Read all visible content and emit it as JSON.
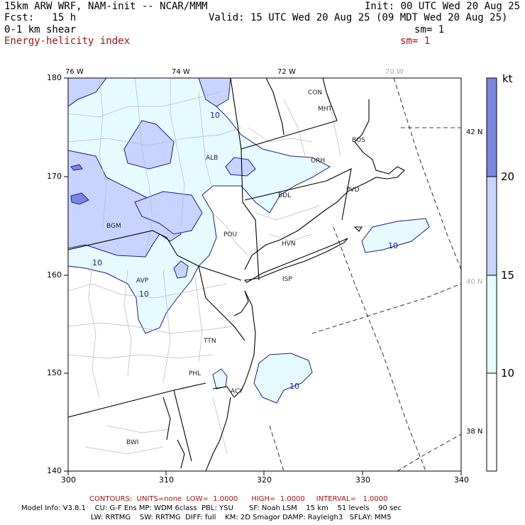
{
  "header": {
    "model_title": "15km ARW WRF, NAM-init -- NCAR/MMM",
    "init": "Init: 00 UTC Wed 20 Aug 25",
    "fcst": "Fcst:   15 h",
    "valid": "Valid: 15 UTC Wed 20 Aug 25 (09 MDT Wed 20 Aug 25)",
    "field1": "0-1 km shear",
    "sm1": "sm= 1",
    "field2": "Energy-helicity index",
    "sm2": "sm= 1"
  },
  "map": {
    "lon_labels": [
      "76 W",
      "74 W",
      "72 W",
      "70 W"
    ],
    "lat_labels": [
      "42 N",
      "40 N",
      "38 N"
    ],
    "x_ticks": [
      "300",
      "310",
      "320",
      "330",
      "340"
    ],
    "y_ticks": [
      "180",
      "170",
      "160",
      "150",
      "140"
    ],
    "stations": [
      "CON",
      "MHT",
      "BOS",
      "ALB",
      "ORH",
      "PVD",
      "BDL",
      "BGM",
      "POU",
      "HVN",
      "AVP",
      "ISP",
      "TTN",
      "PHL",
      "ACY",
      "BWI"
    ],
    "contour_labels": [
      "10",
      "10",
      "10",
      "10",
      "10"
    ]
  },
  "colorbar": {
    "unit": "kt",
    "levels": [
      "20",
      "15",
      "10"
    ],
    "colors": [
      "#7b86e0",
      "#c8d4ff",
      "#e6fbff",
      "#ffffff"
    ]
  },
  "footer": {
    "contours": "CONTOURS:  UNITS=none  LOW=  1.0000      HIGH=  1.0000     INTERVAL=   1.0000",
    "model_info_1": "Model Info: V3.8.1    CU: G-F Ens MP: WDM 6class  PBL: YSU       SF: Noah LSM    15 km    51 levels    90 sec",
    "model_info_2": "LW: RRTMG    SW: RRTMG  DIFF: full    KM: 2D Smagor DAMP: Rayleigh3   SFLAY: MM5"
  }
}
